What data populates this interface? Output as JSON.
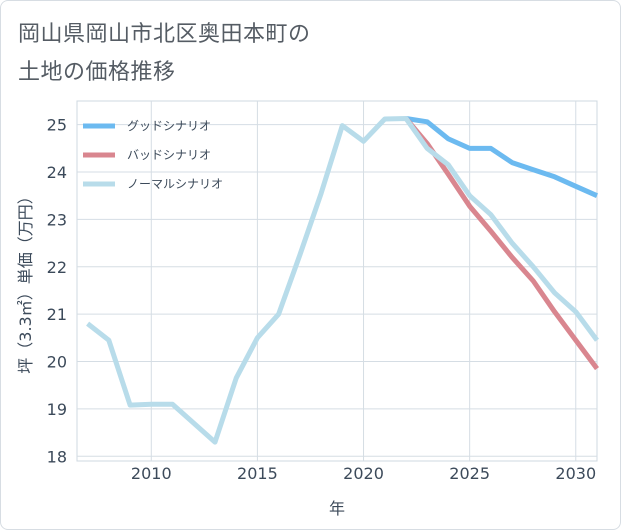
{
  "title_lines": [
    "岡山県岡山市北区奥田本町の",
    "土地の価格推移"
  ],
  "chart_data": {
    "type": "line",
    "xlabel": "年",
    "ylabel": "坪（3.3㎡）単価（万円）",
    "xlim": [
      2006.5,
      2031
    ],
    "ylim": [
      17.9,
      25.5
    ],
    "x_ticks": [
      2010,
      2015,
      2020,
      2025,
      2030
    ],
    "y_ticks": [
      18,
      19,
      20,
      21,
      22,
      23,
      24,
      25
    ],
    "grid": true,
    "legend_position": "top-left",
    "series": [
      {
        "name": "グッドシナリオ",
        "color": "#6cbaf0",
        "x": [
          2022,
          2023,
          2024,
          2025,
          2026,
          2027,
          2028,
          2029,
          2030,
          2031
        ],
        "y": [
          25.13,
          25.06,
          24.7,
          24.5,
          24.5,
          24.2,
          24.05,
          23.9,
          23.7,
          23.5
        ]
      },
      {
        "name": "バッドシナリオ",
        "color": "#d9868f",
        "x": [
          2022,
          2023,
          2024,
          2025,
          2026,
          2027,
          2028,
          2029,
          2030,
          2031
        ],
        "y": [
          25.13,
          24.6,
          23.95,
          23.28,
          22.75,
          22.2,
          21.7,
          21.05,
          20.45,
          19.85
        ]
      },
      {
        "name": "ノーマルシナリオ",
        "color": "#b8dcea",
        "x": [
          2007,
          2008,
          2009,
          2010,
          2011,
          2012,
          2013,
          2014,
          2015,
          2016,
          2017,
          2018,
          2019,
          2020,
          2021,
          2022,
          2023,
          2024,
          2025,
          2026,
          2027,
          2028,
          2029,
          2030,
          2031
        ],
        "y": [
          20.8,
          20.45,
          19.08,
          19.1,
          19.1,
          18.7,
          18.3,
          19.65,
          20.5,
          21.0,
          22.25,
          23.55,
          24.98,
          24.65,
          25.12,
          25.13,
          24.5,
          24.15,
          23.5,
          23.1,
          22.5,
          22.0,
          21.45,
          21.05,
          20.45
        ]
      }
    ]
  }
}
